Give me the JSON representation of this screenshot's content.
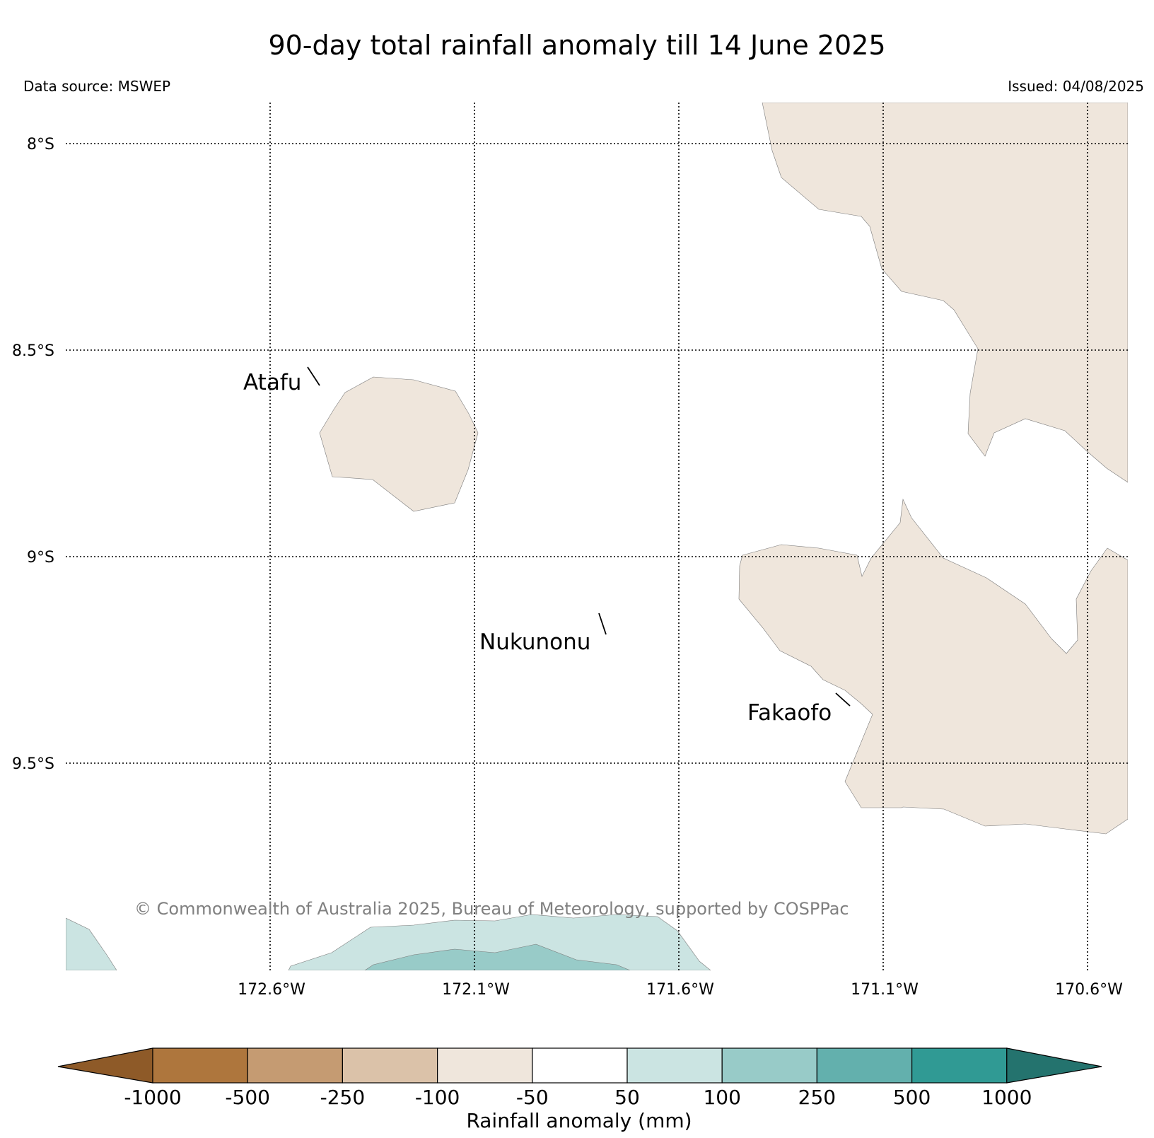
{
  "title": "90-day total rainfall anomaly till 14 June 2025",
  "data_source": "Data source: MSWEP",
  "issued": "Issued: 04/08/2025",
  "copyright": "© Commonwealth of Australia 2025, Bureau of Meteorology, supported by COSPPac",
  "map": {
    "lat_labels": [
      "8°S",
      "8.5°S",
      "9°S",
      "9.5°S"
    ],
    "lon_labels": [
      "172.6°W",
      "172.1°W",
      "171.6°W",
      "171.1°W",
      "170.6°W"
    ],
    "places": [
      "Atafu",
      "Nukunonu",
      "Fakaofo"
    ]
  },
  "colorbar": {
    "label": "Rainfall anomaly (mm)",
    "ticks": [
      "-1000",
      "-500",
      "-250",
      "-100",
      "-50",
      "50",
      "100",
      "250",
      "500",
      "1000"
    ],
    "colors": [
      "#8e5a28",
      "#ae763d",
      "#c59b72",
      "#dbc2a9",
      "#efe6dc",
      "#ffffff",
      "#cbe4e2",
      "#98cbc8",
      "#63b0ad",
      "#309a94",
      "#24736e"
    ]
  },
  "legend_colors": {
    "dry": "#efe6dc",
    "wet1": "#cbe4e2",
    "wet2": "#98cbc8"
  }
}
